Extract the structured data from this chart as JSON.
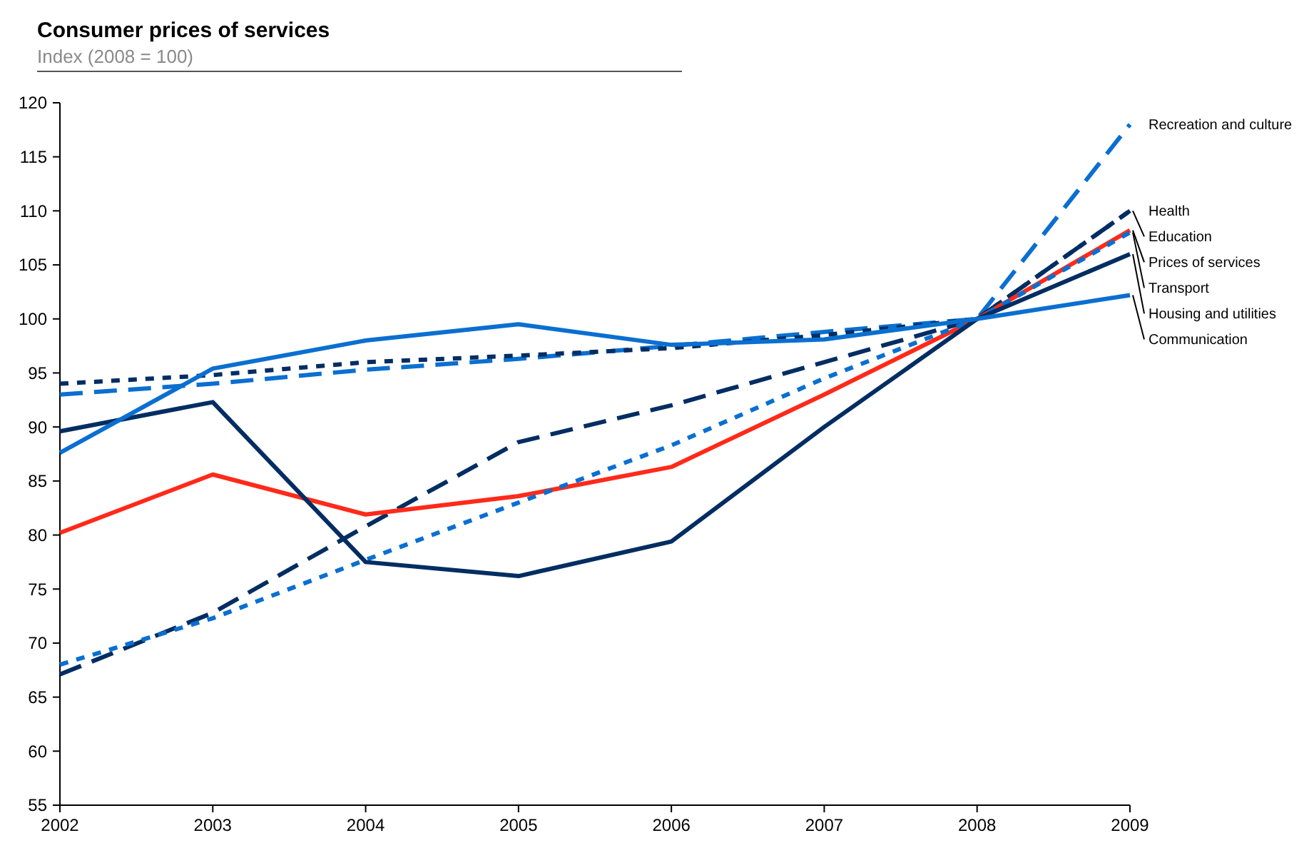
{
  "chart_data": {
    "type": "line",
    "title": "Consumer prices of services",
    "subtitle": "Index (2008 = 100)",
    "x": [
      2002,
      2003,
      2004,
      2005,
      2006,
      2007,
      2008,
      2009
    ],
    "xlim": [
      2002,
      2009
    ],
    "xticks": [
      2002,
      2003,
      2004,
      2005,
      2006,
      2007,
      2008,
      2009
    ],
    "ylim": [
      55,
      120
    ],
    "yticks": [
      55,
      60,
      65,
      70,
      75,
      80,
      85,
      90,
      95,
      100,
      105,
      110,
      115,
      120
    ],
    "grid": false,
    "series": [
      {
        "name": "Recreation and culture",
        "color": "#0a6fd0",
        "line_style": "dashed",
        "values": [
          93,
          94,
          95.3,
          96.3,
          97.5,
          98.8,
          100,
          118
        ]
      },
      {
        "name": "Health",
        "color": "#002d62",
        "line_style": "dotted",
        "values": [
          94,
          94.8,
          96,
          96.6,
          97.3,
          98.5,
          100,
          110
        ]
      },
      {
        "name": "Education",
        "color": "#002d62",
        "line_style": "dashed",
        "values": [
          67.1,
          72.8,
          80.8,
          88.6,
          92,
          96,
          100,
          110
        ]
      },
      {
        "name": "Prices of services",
        "color": "#ff2a1a",
        "line_style": "solid",
        "values": [
          80.2,
          85.6,
          81.9,
          83.6,
          86.3,
          93,
          100,
          108.2
        ]
      },
      {
        "name": "Transport",
        "color": "#0a6fd0",
        "line_style": "dotted",
        "values": [
          68,
          72.3,
          77.7,
          83,
          88.3,
          94.5,
          100,
          108
        ]
      },
      {
        "name": "Housing and utilities",
        "color": "#002d62",
        "line_style": "solid",
        "values": [
          89.6,
          92.3,
          77.5,
          76.2,
          79.4,
          90,
          100,
          106
        ]
      },
      {
        "name": "Communication",
        "color": "#0a6fd0",
        "line_style": "solid",
        "values": [
          87.6,
          95.4,
          98,
          99.5,
          97.6,
          98.1,
          100,
          102.2
        ]
      }
    ]
  }
}
